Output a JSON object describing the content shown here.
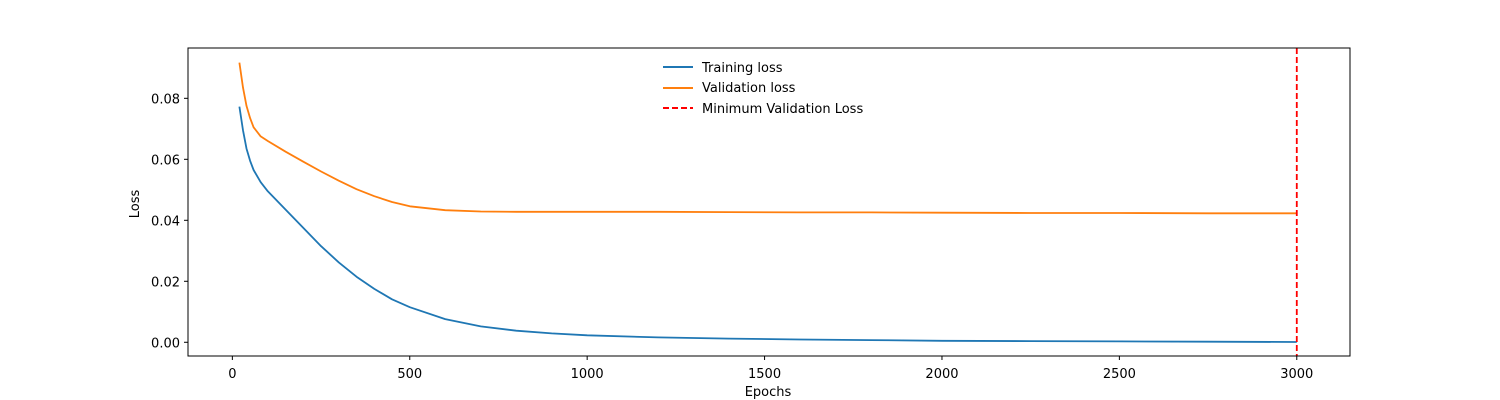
{
  "chart_data": {
    "type": "line",
    "title": "",
    "xlabel": "Epochs",
    "ylabel": "Loss",
    "xlim": [
      -125,
      3150
    ],
    "ylim": [
      -0.0045,
      0.0965
    ],
    "xticks": [
      0,
      500,
      1000,
      1500,
      2000,
      2500,
      3000
    ],
    "yticks": [
      0.0,
      0.02,
      0.04,
      0.06,
      0.08
    ],
    "xtick_labels": [
      "0",
      "500",
      "1000",
      "1500",
      "2000",
      "2500",
      "3000"
    ],
    "ytick_labels": [
      "0.00",
      "0.02",
      "0.04",
      "0.06",
      "0.08"
    ],
    "grid": false,
    "legend_position": "top-center",
    "series": [
      {
        "name": "Training loss",
        "color": "#1f77b4",
        "style": "solid",
        "x": [
          20,
          30,
          40,
          50,
          60,
          80,
          100,
          150,
          200,
          250,
          300,
          350,
          400,
          450,
          500,
          600,
          700,
          800,
          900,
          1000,
          1200,
          1400,
          1600,
          1800,
          2000,
          2250,
          2500,
          2750,
          3000
        ],
        "y": [
          0.0773,
          0.0695,
          0.0635,
          0.0595,
          0.0565,
          0.0525,
          0.0495,
          0.0435,
          0.0375,
          0.0315,
          0.0262,
          0.0215,
          0.0175,
          0.0141,
          0.0115,
          0.0076,
          0.0052,
          0.0038,
          0.0029,
          0.0023,
          0.0016,
          0.0012,
          0.0009,
          0.0007,
          0.0005,
          0.0004,
          0.0003,
          0.0002,
          0.0001
        ]
      },
      {
        "name": "Validation loss",
        "color": "#ff7f0e",
        "style": "solid",
        "x": [
          20,
          30,
          40,
          50,
          60,
          80,
          100,
          150,
          200,
          250,
          300,
          350,
          400,
          450,
          500,
          600,
          700,
          800,
          900,
          1000,
          1200,
          1400,
          1600,
          1800,
          2000,
          2250,
          2500,
          2750,
          3000
        ],
        "y": [
          0.0917,
          0.0835,
          0.0775,
          0.0735,
          0.0705,
          0.0675,
          0.066,
          0.0625,
          0.0592,
          0.056,
          0.053,
          0.0502,
          0.0479,
          0.046,
          0.0446,
          0.0433,
          0.0429,
          0.0428,
          0.0428,
          0.0428,
          0.0428,
          0.0427,
          0.0426,
          0.0426,
          0.0425,
          0.0424,
          0.0424,
          0.0423,
          0.0423
        ]
      }
    ],
    "vlines": [
      {
        "name": "Minimum Validation Loss",
        "x": 3000,
        "color": "#ff0000",
        "style": "dashed"
      }
    ]
  }
}
